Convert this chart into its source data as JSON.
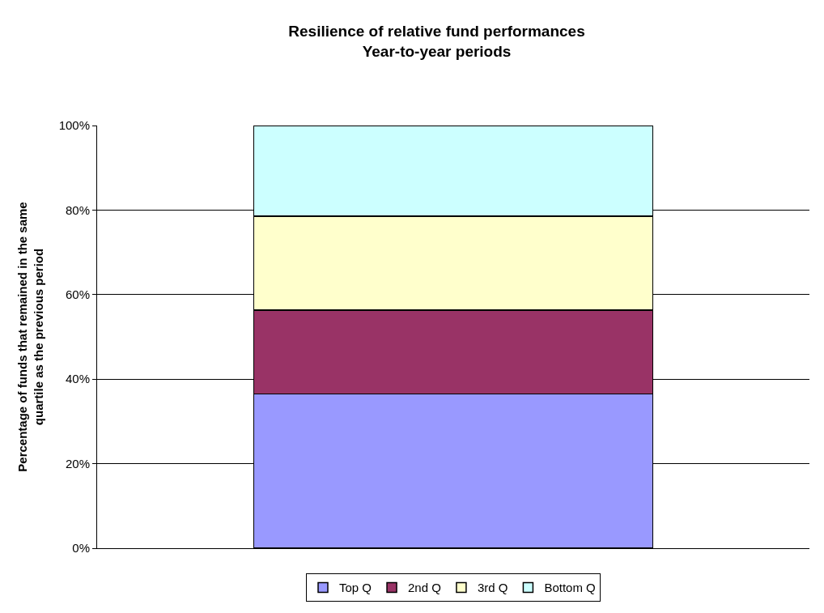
{
  "chart_data": {
    "type": "bar",
    "title": "Resilience of relative fund performances\nYear-to-year periods",
    "ylabel": "Percentage of funds that remained in the same\nquartile as the previous period",
    "categories": [
      null
    ],
    "stacked": true,
    "series": [
      {
        "name": "Top Q",
        "color": "#9999ff",
        "values": [
          36.5
        ]
      },
      {
        "name": "2nd Q",
        "color": "#993366",
        "values": [
          19.8
        ]
      },
      {
        "name": "3rd Q",
        "color": "#ffffcc",
        "values": [
          22.2
        ]
      },
      {
        "name": "Bottom Q",
        "color": "#ccffff",
        "values": [
          21.5
        ]
      }
    ],
    "ylim": [
      0,
      100
    ],
    "yticks": [
      {
        "value": 0,
        "label": "0%"
      },
      {
        "value": 20,
        "label": "20%"
      },
      {
        "value": 40,
        "label": "40%"
      },
      {
        "value": 60,
        "label": "60%"
      },
      {
        "value": 80,
        "label": "80%"
      },
      {
        "value": 100,
        "label": "100%"
      }
    ],
    "grid": "y",
    "legend": "bottom"
  }
}
